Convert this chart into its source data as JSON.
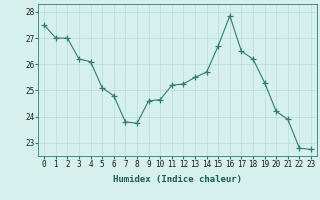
{
  "x": [
    0,
    1,
    2,
    3,
    4,
    5,
    6,
    7,
    8,
    9,
    10,
    11,
    12,
    13,
    14,
    15,
    16,
    17,
    18,
    19,
    20,
    21,
    22,
    23
  ],
  "y": [
    27.5,
    27.0,
    27.0,
    26.2,
    26.1,
    25.1,
    24.8,
    23.8,
    23.75,
    24.6,
    24.65,
    25.2,
    25.25,
    25.5,
    25.7,
    26.7,
    27.85,
    26.5,
    26.2,
    25.3,
    24.2,
    23.9,
    22.8,
    22.75
  ],
  "line_color": "#2e7d6e",
  "marker": "+",
  "marker_size": 4,
  "bg_color": "#d6f0ee",
  "grid_color": "#b8dbd8",
  "xlabel": "Humidex (Indice chaleur)",
  "ylim": [
    22.5,
    28.3
  ],
  "yticks": [
    23,
    24,
    25,
    26,
    27,
    28
  ],
  "xticks": [
    0,
    1,
    2,
    3,
    4,
    5,
    6,
    7,
    8,
    9,
    10,
    11,
    12,
    13,
    14,
    15,
    16,
    17,
    18,
    19,
    20,
    21,
    22,
    23
  ],
  "tick_fontsize": 5.5,
  "xlabel_fontsize": 6.5
}
